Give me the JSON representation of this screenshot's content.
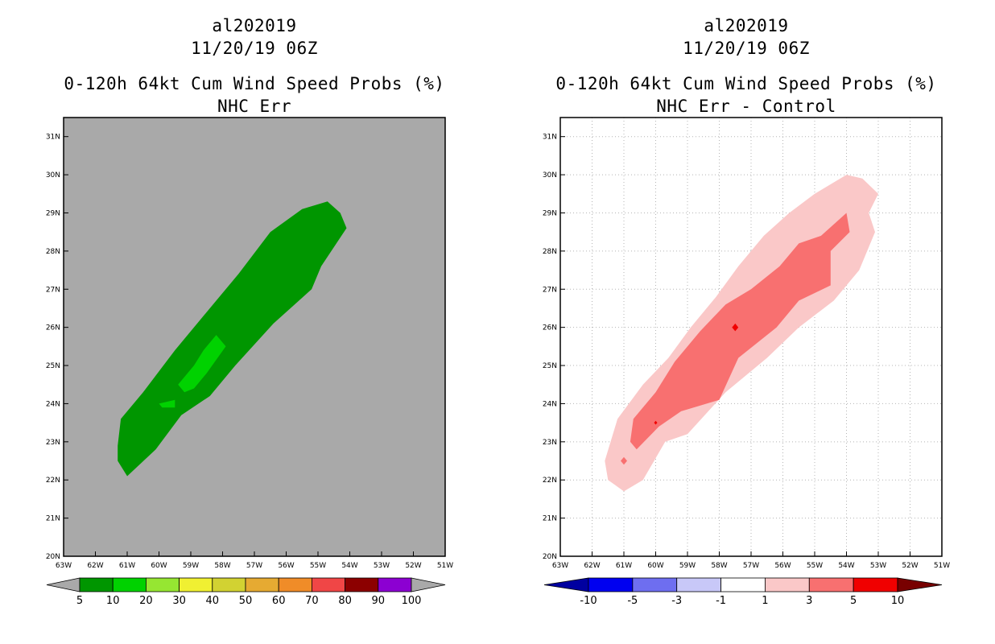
{
  "panels": [
    {
      "title_line1": "al202019",
      "title_line2": "11/20/19 06Z",
      "title_line3": "0-120h 64kt Cum Wind Speed Probs (%)",
      "title_line4": "NHC Err"
    },
    {
      "title_line1": "al202019",
      "title_line2": "11/20/19 06Z",
      "title_line3": "0-120h 64kt Cum Wind Speed Probs (%)",
      "title_line4": "NHC Err - Control"
    }
  ],
  "chart_data": [
    {
      "type": "filled-contour-map",
      "name": "NHC Err",
      "background_color": "#a9a9a9",
      "x_ticks": [
        "63W",
        "62W",
        "61W",
        "60W",
        "59W",
        "58W",
        "57W",
        "56W",
        "55W",
        "54W",
        "53W",
        "52W",
        "51W"
      ],
      "y_ticks": [
        "20N",
        "21N",
        "22N",
        "23N",
        "24N",
        "25N",
        "26N",
        "27N",
        "28N",
        "29N",
        "30N",
        "31N"
      ],
      "lon_range": [
        -63,
        -51
      ],
      "lat_range": [
        20,
        31.5
      ],
      "grid": false,
      "colorbar": {
        "labels": [
          "5",
          "10",
          "20",
          "30",
          "40",
          "50",
          "60",
          "70",
          "80",
          "90",
          "100"
        ],
        "colors": [
          "#a9a9a9",
          "#009600",
          "#00d200",
          "#96e632",
          "#f0f032",
          "#d2d232",
          "#e6aa32",
          "#f08c28",
          "#f04646",
          "#8c0000",
          "#8c00d2",
          "#a9a9a9"
        ]
      },
      "regions": [
        {
          "level": "5-10",
          "color": "#009600",
          "lonlat": [
            [
              -61.0,
              22.1
            ],
            [
              -60.1,
              22.8
            ],
            [
              -59.3,
              23.7
            ],
            [
              -58.4,
              24.2
            ],
            [
              -57.6,
              25.0
            ],
            [
              -56.4,
              26.1
            ],
            [
              -55.2,
              27.0
            ],
            [
              -54.9,
              27.6
            ],
            [
              -54.1,
              28.6
            ],
            [
              -54.3,
              29.0
            ],
            [
              -54.7,
              29.3
            ],
            [
              -55.5,
              29.1
            ],
            [
              -56.5,
              28.5
            ],
            [
              -57.5,
              27.4
            ],
            [
              -58.6,
              26.3
            ],
            [
              -59.5,
              25.4
            ],
            [
              -60.5,
              24.3
            ],
            [
              -61.2,
              23.6
            ],
            [
              -61.3,
              22.9
            ],
            [
              -61.3,
              22.5
            ]
          ]
        },
        {
          "level": "10-20",
          "color": "#00d200",
          "lonlat": [
            [
              -59.2,
              24.3
            ],
            [
              -58.9,
              24.4
            ],
            [
              -58.5,
              24.8
            ],
            [
              -57.9,
              25.5
            ],
            [
              -58.2,
              25.8
            ],
            [
              -58.6,
              25.4
            ],
            [
              -58.9,
              25.0
            ],
            [
              -59.4,
              24.5
            ]
          ]
        },
        {
          "level": "10-20",
          "color": "#00d200",
          "lonlat": [
            [
              -60.0,
              24.0
            ],
            [
              -59.5,
              24.1
            ],
            [
              -59.5,
              23.9
            ],
            [
              -59.9,
              23.9
            ]
          ]
        }
      ]
    },
    {
      "type": "filled-contour-map",
      "name": "NHC Err - Control",
      "background_color": "#ffffff",
      "x_ticks": [
        "63W",
        "62W",
        "61W",
        "60W",
        "59W",
        "58W",
        "57W",
        "56W",
        "55W",
        "54W",
        "53W",
        "52W",
        "51W"
      ],
      "y_ticks": [
        "20N",
        "21N",
        "22N",
        "23N",
        "24N",
        "25N",
        "26N",
        "27N",
        "28N",
        "29N",
        "30N",
        "31N"
      ],
      "lon_range": [
        -63,
        -51
      ],
      "lat_range": [
        20,
        31.5
      ],
      "grid": true,
      "colorbar": {
        "labels": [
          "-10",
          "-5",
          "-3",
          "-1",
          "1",
          "3",
          "5",
          "10"
        ],
        "colors": [
          "#0000a0",
          "#0000f0",
          "#6e6ef0",
          "#c8c8f8",
          "#ffffff",
          "#fac8c8",
          "#f87070",
          "#f00000",
          "#780000"
        ]
      },
      "regions": [
        {
          "level": "1-3",
          "color": "#fac8c8",
          "lonlat": [
            [
              -61.0,
              21.7
            ],
            [
              -60.4,
              22.0
            ],
            [
              -59.7,
              23.0
            ],
            [
              -59.0,
              23.2
            ],
            [
              -57.8,
              24.3
            ],
            [
              -56.5,
              25.2
            ],
            [
              -55.5,
              26.0
            ],
            [
              -54.4,
              26.7
            ],
            [
              -53.6,
              27.5
            ],
            [
              -53.1,
              28.5
            ],
            [
              -53.3,
              29.0
            ],
            [
              -53.0,
              29.5
            ],
            [
              -53.5,
              29.9
            ],
            [
              -54.0,
              30.0
            ],
            [
              -55.0,
              29.5
            ],
            [
              -55.8,
              29.0
            ],
            [
              -56.6,
              28.4
            ],
            [
              -57.4,
              27.6
            ],
            [
              -58.1,
              26.8
            ],
            [
              -58.9,
              26.0
            ],
            [
              -59.6,
              25.2
            ],
            [
              -60.4,
              24.5
            ],
            [
              -61.2,
              23.6
            ],
            [
              -61.6,
              22.5
            ],
            [
              -61.5,
              22.0
            ]
          ]
        },
        {
          "level": "3-5",
          "color": "#f87070",
          "lonlat": [
            [
              -60.6,
              22.8
            ],
            [
              -59.9,
              23.4
            ],
            [
              -59.2,
              23.8
            ],
            [
              -58.0,
              24.1
            ],
            [
              -57.4,
              25.2
            ],
            [
              -56.2,
              26.0
            ],
            [
              -55.5,
              26.7
            ],
            [
              -54.5,
              27.1
            ],
            [
              -54.5,
              28.0
            ],
            [
              -53.9,
              28.5
            ],
            [
              -54.0,
              29.0
            ],
            [
              -54.8,
              28.4
            ],
            [
              -55.5,
              28.2
            ],
            [
              -56.1,
              27.6
            ],
            [
              -57.0,
              27.0
            ],
            [
              -57.8,
              26.6
            ],
            [
              -58.6,
              25.9
            ],
            [
              -59.4,
              25.1
            ],
            [
              -60.0,
              24.3
            ],
            [
              -60.7,
              23.6
            ],
            [
              -60.8,
              23.0
            ]
          ]
        },
        {
          "level": "5-10",
          "color": "#f00000",
          "lonlat": [
            [
              -57.5,
              26.1
            ],
            [
              -57.4,
              26.0
            ],
            [
              -57.5,
              25.9
            ],
            [
              -57.6,
              26.0
            ]
          ]
        },
        {
          "level": "3-5",
          "color": "#f87070",
          "lonlat": [
            [
              -61.0,
              22.6
            ],
            [
              -60.9,
              22.5
            ],
            [
              -61.0,
              22.4
            ],
            [
              -61.1,
              22.5
            ]
          ]
        },
        {
          "level": "5-10",
          "color": "#f00000",
          "lonlat": [
            [
              -60.0,
              23.55
            ],
            [
              -59.95,
              23.5
            ],
            [
              -60.0,
              23.45
            ],
            [
              -60.05,
              23.5
            ]
          ]
        }
      ]
    }
  ]
}
